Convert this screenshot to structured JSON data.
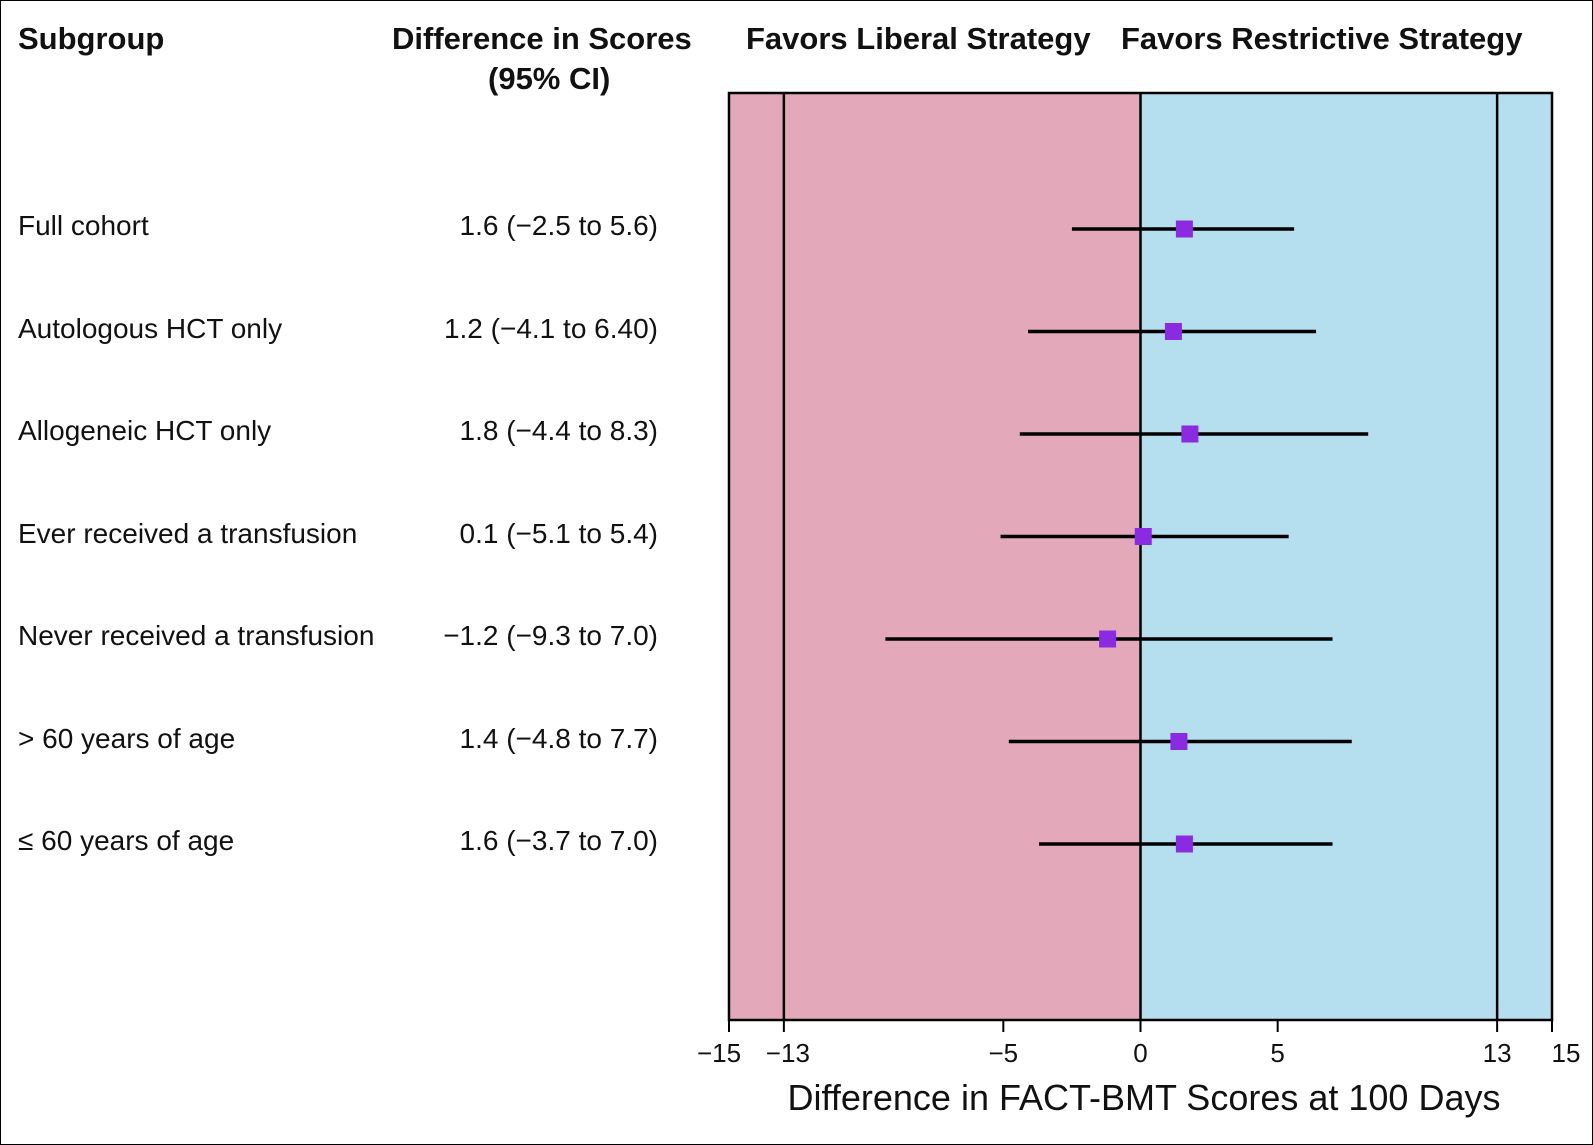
{
  "headers": {
    "subgroup": "Subgroup",
    "difference_line1": "Difference in Scores",
    "difference_line2": "(95% CI)",
    "favors_liberal": "Favors Liberal Strategy",
    "favors_restrictive": "Favors Restrictive Strategy"
  },
  "colors": {
    "liberal_region": "#e3a9bb",
    "restrictive_region": "#b5deef",
    "marker": "#8a2be2",
    "line": "#000000"
  },
  "chart_data": {
    "type": "scatter",
    "subtype": "forest-plot",
    "xlabel": "Difference in FACT-BMT Scores at 100 Days",
    "xlim": [
      -15,
      15
    ],
    "xticks": [
      -15,
      -13,
      -5,
      0,
      5,
      13,
      15
    ],
    "xtick_labels": [
      "−15",
      "−13",
      "−5",
      "0",
      "5",
      "13",
      "15"
    ],
    "reference_lines": [
      -13,
      0,
      13
    ],
    "shaded_regions": [
      {
        "from": -15,
        "to": 0,
        "label": "Favors Liberal Strategy"
      },
      {
        "from": 0,
        "to": 15,
        "label": "Favors Restrictive Strategy"
      }
    ],
    "rows": [
      {
        "subgroup": "Full cohort",
        "ci_text": "1.6 (−2.5 to 5.6)",
        "estimate": 1.6,
        "lower": -2.5,
        "upper": 5.6
      },
      {
        "subgroup": "Autologous HCT only",
        "ci_text": "1.2 (−4.1 to 6.40)",
        "estimate": 1.2,
        "lower": -4.1,
        "upper": 6.4
      },
      {
        "subgroup": "Allogeneic HCT only",
        "ci_text": "1.8 (−4.4 to 8.3)",
        "estimate": 1.8,
        "lower": -4.4,
        "upper": 8.3
      },
      {
        "subgroup": "Ever received a transfusion",
        "ci_text": "0.1 (−5.1 to 5.4)",
        "estimate": 0.1,
        "lower": -5.1,
        "upper": 5.4
      },
      {
        "subgroup": "Never received a transfusion",
        "ci_text": "−1.2 (−9.3 to 7.0)",
        "estimate": -1.2,
        "lower": -9.3,
        "upper": 7.0
      },
      {
        "subgroup": "> 60 years of age",
        "ci_text": "1.4 (−4.8 to 7.7)",
        "estimate": 1.4,
        "lower": -4.8,
        "upper": 7.7
      },
      {
        "subgroup": "≤ 60 years of age",
        "ci_text": "1.6 (−3.7 to 7.0)",
        "estimate": 1.6,
        "lower": -3.7,
        "upper": 7.0
      }
    ]
  }
}
